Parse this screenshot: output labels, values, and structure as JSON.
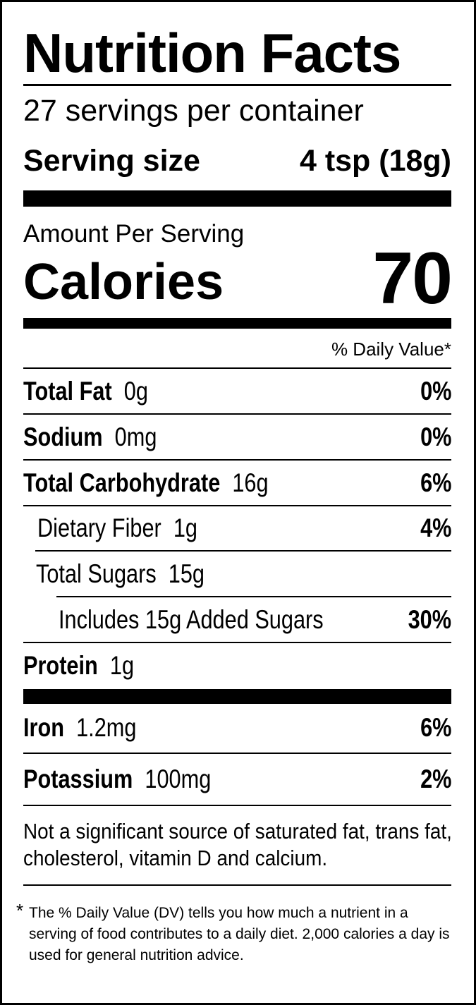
{
  "label": {
    "title": "Nutrition Facts",
    "servings_per_container": "27 servings per container",
    "serving_size_label": "Serving size",
    "serving_size_value": "4 tsp (18g)",
    "amount_per_serving": "Amount Per Serving",
    "calories_label": "Calories",
    "calories_value": "70",
    "daily_value_header": "% Daily Value*",
    "nutrients": [
      {
        "name": "Total Fat",
        "amount": "0g",
        "dv": "0%"
      },
      {
        "name": "Sodium",
        "amount": "0mg",
        "dv": "0%"
      },
      {
        "name": "Total Carbohydrate",
        "amount": "16g",
        "dv": "6%"
      },
      {
        "name": "Dietary Fiber",
        "amount": "1g",
        "dv": "4%"
      },
      {
        "name": "Total Sugars",
        "amount": "15g",
        "dv": ""
      },
      {
        "name": "Includes 15g Added Sugars",
        "amount": "",
        "dv": "30%"
      },
      {
        "name": "Protein",
        "amount": "1g",
        "dv": ""
      },
      {
        "name": "Iron",
        "amount": "1.2mg",
        "dv": "6%"
      },
      {
        "name": "Potassium",
        "amount": "100mg",
        "dv": "2%"
      }
    ],
    "note": "Not a significant source of saturated fat, trans fat, cholesterol, vitamin D and calcium.",
    "footnote_star": "*",
    "footnote": "The % Daily Value (DV) tells you how much a nutrient in a serving of food contributes to a daily diet. 2,000 calories a day is used for general nutrition advice."
  }
}
